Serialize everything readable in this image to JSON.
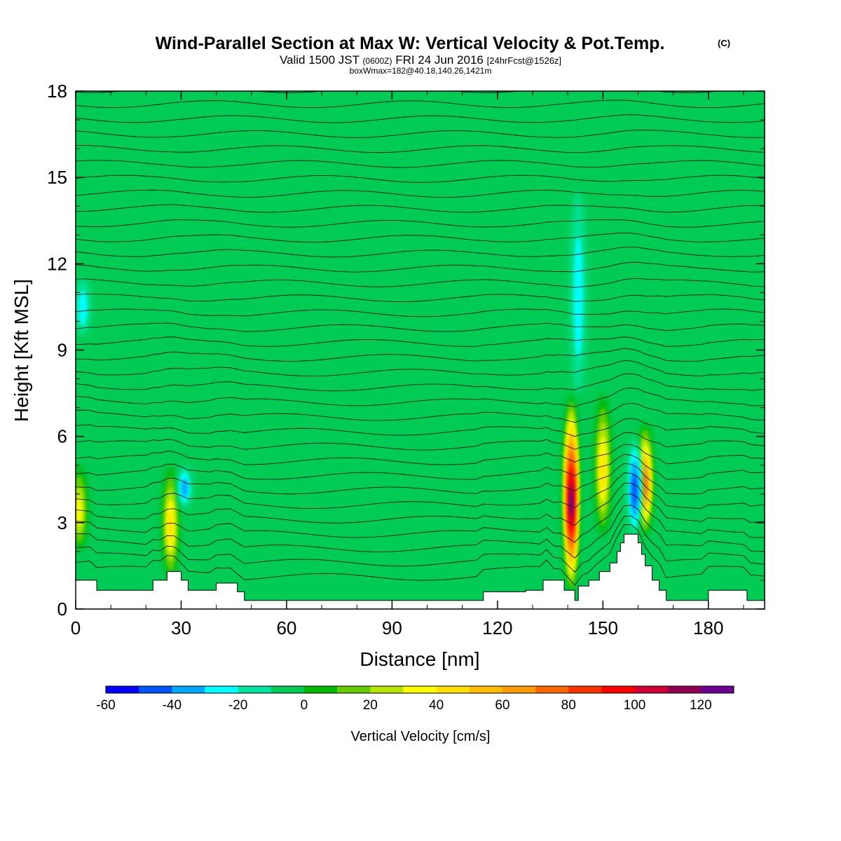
{
  "chart_data": {
    "type": "heatmap",
    "title": "Wind-Parallel Section at Max W: Vertical Velocity & Pot.Temp.",
    "title_mark": "(C)",
    "subtitle": {
      "main": "Valid 1500 JST",
      "utc": "(0600Z)",
      "date": "FRI 24 Jun 2016",
      "fcst": "[24hrFcst@1526z]"
    },
    "box_info": "boxWmax=182@40.18,140.26,1421m",
    "xlabel": "Distance [nm]",
    "ylabel": "Height [Kft MSL]",
    "xlim": [
      0,
      196
    ],
    "ylim": [
      0,
      18
    ],
    "x_ticks": [
      "0",
      "30",
      "60",
      "90",
      "120",
      "150",
      "180"
    ],
    "y_ticks": [
      "0",
      "3",
      "6",
      "9",
      "12",
      "15",
      "18"
    ],
    "colorbar": {
      "label": "Vertical Velocity [cm/s]",
      "min": -60,
      "max": 130,
      "step": 10,
      "tick_labels": [
        "-60",
        "-40",
        "-20",
        "0",
        "20",
        "40",
        "60",
        "80",
        "100",
        "120"
      ],
      "colors": [
        "#0000ff",
        "#0055ff",
        "#00a8ff",
        "#00ffff",
        "#00e6a0",
        "#00cc55",
        "#00b800",
        "#66cc00",
        "#b4e600",
        "#ffff00",
        "#ffe000",
        "#ffbb00",
        "#ff9a00",
        "#ff6600",
        "#ff3300",
        "#ff0000",
        "#d00033",
        "#900050",
        "#6a0090"
      ]
    },
    "features": [
      {
        "type": "updraft",
        "x": 141,
        "z_bottom": 0.5,
        "z_top": 7.5,
        "max": 125
      },
      {
        "type": "updraft",
        "x": 162,
        "z_bottom": 2.5,
        "z_top": 6.5,
        "max": 80
      },
      {
        "type": "updraft",
        "x": 150,
        "z_bottom": 2.5,
        "z_top": 7.5,
        "max": 45
      },
      {
        "type": "updraft",
        "x": 27,
        "z_bottom": 1.0,
        "z_top": 5.0,
        "max": 45
      },
      {
        "type": "updraft",
        "x": 1,
        "z_bottom": 2.0,
        "z_top": 5.0,
        "max": 40
      },
      {
        "type": "downdraft",
        "x": 2,
        "z_bottom": 9.5,
        "z_top": 11.5,
        "min": -25
      },
      {
        "type": "downdraft",
        "x": 31,
        "z_bottom": 3.5,
        "z_top": 5.0,
        "min": -35
      },
      {
        "type": "downdraft",
        "x": 159,
        "z_bottom": 2.5,
        "z_top": 6.0,
        "min": -50
      },
      {
        "type": "downdraft",
        "x": 143,
        "z_bottom": 7.5,
        "z_top": 14.5,
        "min": -30
      }
    ],
    "terrain": [
      [
        0,
        1.0
      ],
      [
        6,
        1.0
      ],
      [
        6,
        0.65
      ],
      [
        22,
        0.65
      ],
      [
        22,
        1.0
      ],
      [
        26,
        1.0
      ],
      [
        26,
        1.3
      ],
      [
        30,
        1.3
      ],
      [
        30,
        1.0
      ],
      [
        32,
        1.0
      ],
      [
        32,
        0.65
      ],
      [
        40,
        0.65
      ],
      [
        40,
        0.9
      ],
      [
        46,
        0.9
      ],
      [
        46,
        0.6
      ],
      [
        48,
        0.6
      ],
      [
        48,
        0.3
      ],
      [
        116,
        0.3
      ],
      [
        116,
        0.6
      ],
      [
        128,
        0.6
      ],
      [
        128,
        0.65
      ],
      [
        133,
        0.65
      ],
      [
        133,
        1.0
      ],
      [
        139,
        1.0
      ],
      [
        139,
        0.65
      ],
      [
        142,
        0.65
      ],
      [
        142,
        0.3
      ],
      [
        143,
        0.3
      ],
      [
        143,
        0.8
      ],
      [
        146,
        0.8
      ],
      [
        146,
        1.0
      ],
      [
        149,
        1.0
      ],
      [
        149,
        1.3
      ],
      [
        152,
        1.3
      ],
      [
        152,
        1.6
      ],
      [
        154,
        1.6
      ],
      [
        154,
        2.0
      ],
      [
        155,
        2.0
      ],
      [
        155,
        2.3
      ],
      [
        156,
        2.3
      ],
      [
        156,
        2.6
      ],
      [
        160,
        2.6
      ],
      [
        160,
        2.3
      ],
      [
        161,
        2.3
      ],
      [
        161,
        1.9
      ],
      [
        162,
        1.9
      ],
      [
        162,
        1.5
      ],
      [
        164,
        1.5
      ],
      [
        164,
        1.0
      ],
      [
        166,
        1.0
      ],
      [
        166,
        0.65
      ],
      [
        168,
        0.65
      ],
      [
        168,
        0.3
      ],
      [
        180,
        0.3
      ],
      [
        180,
        0.65
      ],
      [
        191,
        0.65
      ],
      [
        191,
        0.3
      ],
      [
        196,
        0.3
      ]
    ]
  }
}
